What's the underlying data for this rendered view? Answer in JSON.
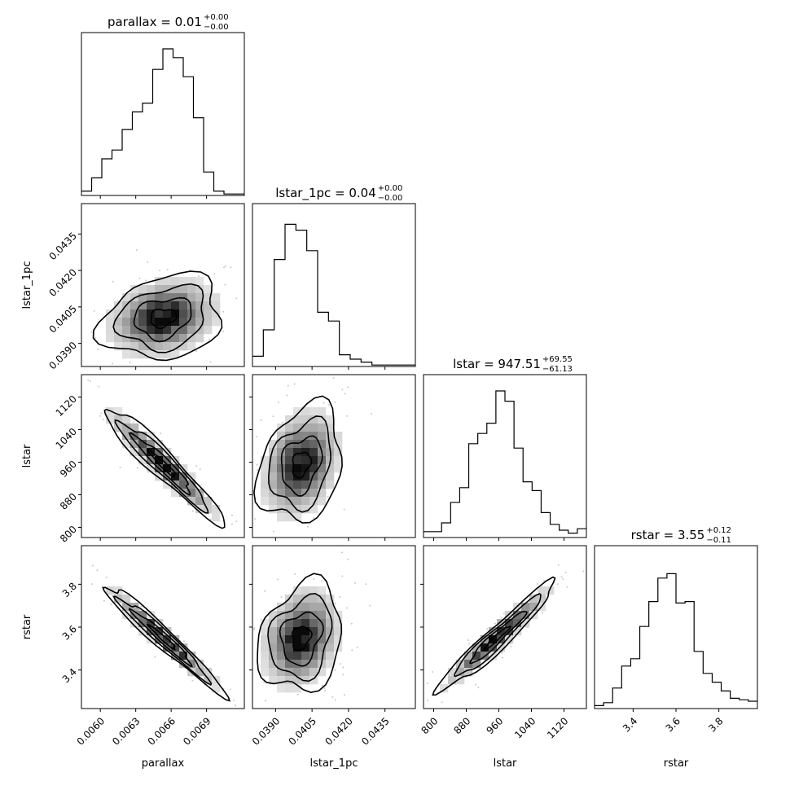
{
  "chart_data": {
    "type": "corner",
    "parameters": [
      "parallax",
      "lstar_1pc",
      "lstar",
      "rstar"
    ],
    "axis_labels": [
      "parallax",
      "lstar_1pc",
      "lstar",
      "rstar"
    ],
    "titles": [
      {
        "name": "parallax",
        "value": "0.01",
        "plus": "+0.00",
        "minus": "−0.00"
      },
      {
        "name": "lstar_1pc",
        "value": "0.04",
        "plus": "+0.00",
        "minus": "−0.00"
      },
      {
        "name": "lstar",
        "value": "947.51",
        "plus": "+69.55",
        "minus": "−61.13"
      },
      {
        "name": "rstar",
        "value": "3.55",
        "plus": "+0.12",
        "minus": "−0.11"
      }
    ],
    "ranges": [
      [
        0.00584,
        0.00722
      ],
      [
        0.03805,
        0.04475
      ],
      [
        775,
        1175
      ],
      [
        3.22,
        3.98
      ]
    ],
    "ticks": [
      {
        "values": [
          0.006,
          0.0063,
          0.0066,
          0.0069
        ],
        "labels": [
          "0.0060",
          "0.0063",
          "0.0066",
          "0.0069"
        ]
      },
      {
        "values": [
          0.039,
          0.0405,
          0.042,
          0.0435
        ],
        "labels": [
          "0.0390",
          "0.0405",
          "0.0420",
          "0.0435"
        ]
      },
      {
        "values": [
          800,
          880,
          960,
          1040,
          1120
        ],
        "labels": [
          "800",
          "880",
          "960",
          "1040",
          "1120"
        ]
      },
      {
        "values": [
          3.4,
          3.6,
          3.8
        ],
        "labels": [
          "3.4",
          "3.6",
          "3.8"
        ]
      }
    ],
    "histograms": [
      {
        "counts": [
          0.03,
          0.12,
          0.25,
          0.31,
          0.45,
          0.57,
          0.63,
          0.86,
          1.0,
          0.94,
          0.81,
          0.53,
          0.16,
          0.03,
          0.01,
          0.01
        ]
      },
      {
        "counts": [
          0.07,
          0.25,
          0.73,
          0.97,
          0.93,
          0.79,
          0.37,
          0.31,
          0.08,
          0.05,
          0.03,
          0.01,
          0.01,
          0.01,
          0.01
        ]
      },
      {
        "counts": [
          0.04,
          0.04,
          0.1,
          0.24,
          0.34,
          0.64,
          0.71,
          0.78,
          1.0,
          0.93,
          0.61,
          0.38,
          0.32,
          0.17,
          0.09,
          0.05,
          0.03,
          0.06
        ]
      },
      {
        "counts": [
          0.02,
          0.04,
          0.14,
          0.29,
          0.34,
          0.56,
          0.73,
          0.89,
          0.92,
          0.72,
          0.73,
          0.39,
          0.24,
          0.18,
          0.12,
          0.07,
          0.06,
          0.05
        ]
      }
    ]
  }
}
